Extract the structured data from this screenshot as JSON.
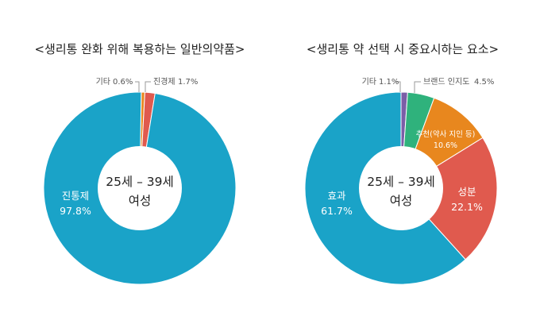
{
  "chart_data": [
    {
      "type": "pie",
      "title": "<생리통 완화 위해 복용하는 일반의약품>",
      "center_label": [
        "25세 – 39세",
        "여성"
      ],
      "slices": [
        {
          "label": "진통제",
          "value": 97.8,
          "display": "97.8%",
          "color": "#1aa3c8"
        },
        {
          "label": "기타",
          "value": 0.6,
          "display": "0.6%",
          "color": "#e8871e"
        },
        {
          "label": "진경제",
          "value": 1.7,
          "display": "1.7%",
          "color": "#e05a4e"
        }
      ]
    },
    {
      "type": "pie",
      "title": "<생리통 약 선택 시 중요시하는 요소>",
      "center_label": [
        "25세 – 39세",
        "여성"
      ],
      "slices": [
        {
          "label": "기타",
          "value": 1.1,
          "display": "1.1%",
          "color": "#7b5ea7"
        },
        {
          "label": "브랜드 인지도",
          "value": 4.5,
          "display": "4.5%",
          "color": "#2fb27c"
        },
        {
          "label": "추천(약사 지인 등)",
          "value": 10.6,
          "display": "10.6%",
          "color": "#e8871e"
        },
        {
          "label": "성분",
          "value": 22.1,
          "display": "22.1%",
          "color": "#e05a4e"
        },
        {
          "label": "효과",
          "value": 61.7,
          "display": "61.7%",
          "color": "#1aa3c8"
        }
      ]
    }
  ]
}
